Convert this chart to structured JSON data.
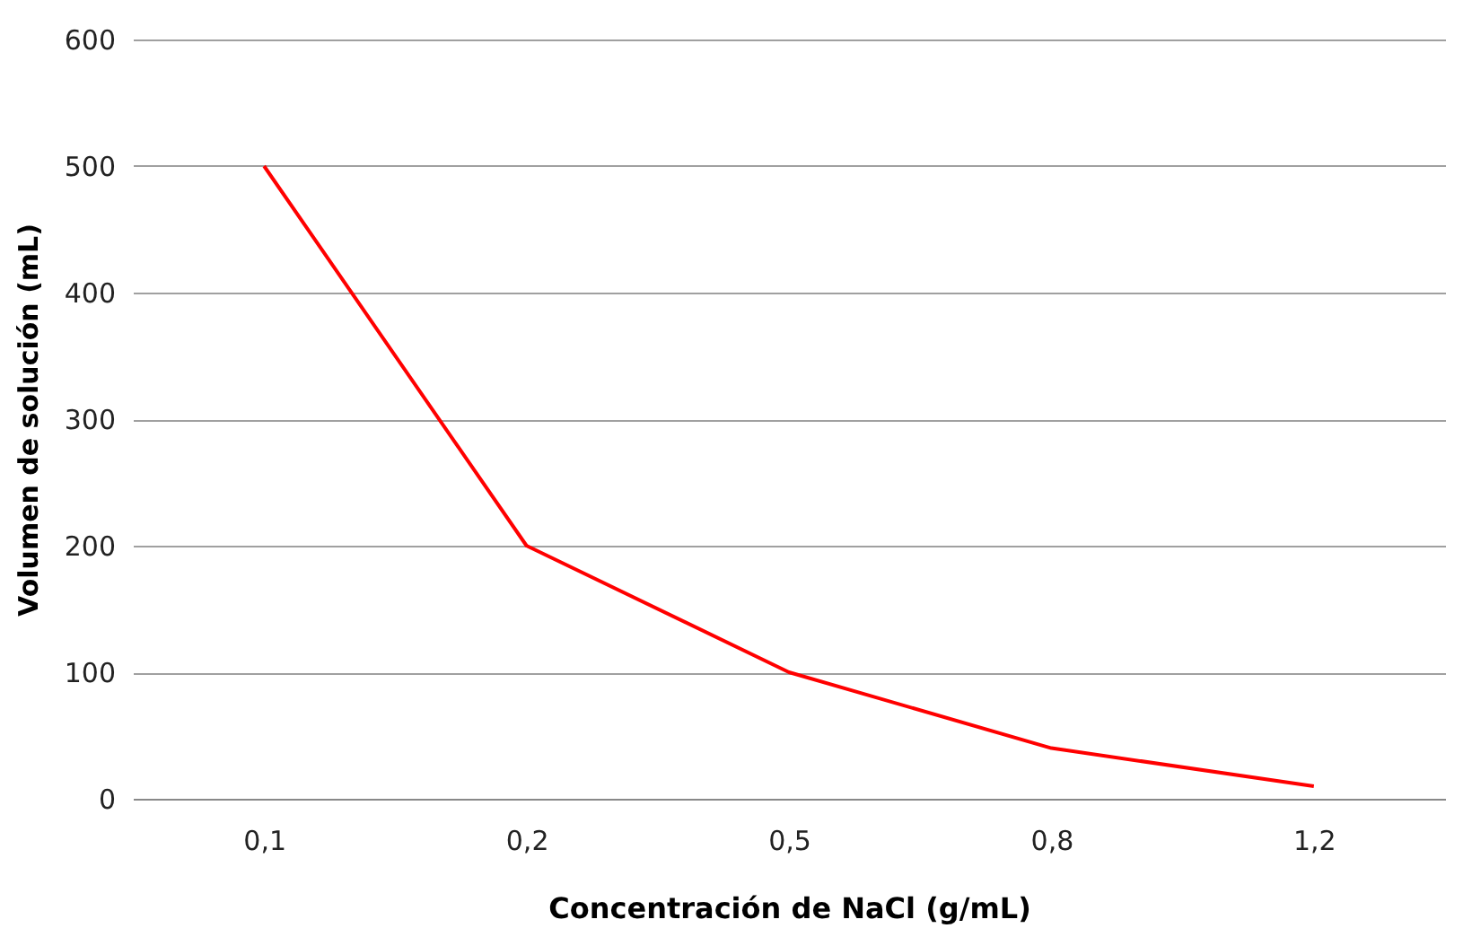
{
  "chart_data": {
    "type": "line",
    "xlabel": "Concentración de NaCl (g/mL)",
    "ylabel": "Volumen de solución (mL)",
    "categories": [
      "0,1",
      "0,2",
      "0,5",
      "0,8",
      "1,2"
    ],
    "series": [
      {
        "color": "#ff0000",
        "values": [
          500,
          200,
          100,
          40,
          10
        ]
      }
    ],
    "ylim": [
      0,
      600
    ],
    "yticks": [
      0,
      100,
      200,
      300,
      400,
      500,
      600
    ],
    "grid": "y",
    "legend": false,
    "marker": "none",
    "line_style": "solid"
  }
}
